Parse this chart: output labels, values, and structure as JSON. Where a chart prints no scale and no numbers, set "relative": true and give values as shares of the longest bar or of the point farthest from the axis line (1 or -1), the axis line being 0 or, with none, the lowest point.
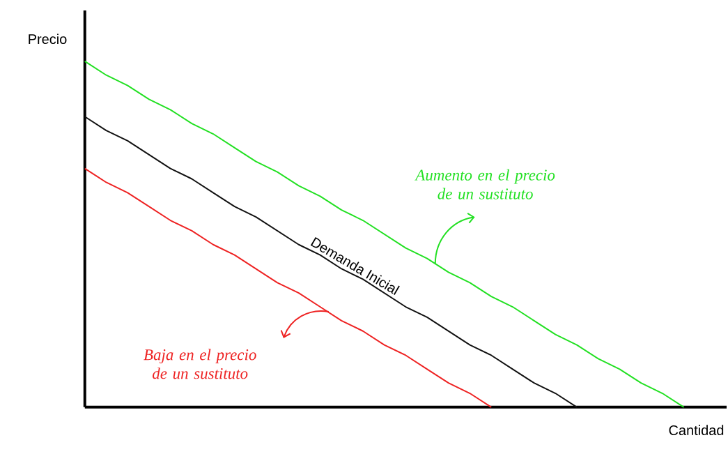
{
  "chart_data": {
    "type": "line",
    "relative": true,
    "xlabel": "Cantidad",
    "ylabel": "Precio",
    "categories": [
      null,
      null,
      null,
      null,
      null,
      null,
      null,
      null,
      null,
      null,
      null,
      null,
      null,
      null,
      null,
      null,
      null,
      null,
      null,
      null,
      null,
      null,
      null,
      null,
      null,
      null,
      null,
      null,
      null
    ],
    "series": [
      {
        "name": "Aumento en el precio de un sustituto",
        "color": "#22e022",
        "values": [
          1,
          0.96,
          0.93,
          0.89,
          0.86,
          0.82,
          0.79,
          0.75,
          0.71,
          0.68,
          0.64,
          0.61,
          0.57,
          0.54,
          0.5,
          0.46,
          0.43,
          0.39,
          0.36,
          0.32,
          0.29,
          0.25,
          0.21,
          0.18,
          0.14,
          0.11,
          0.07,
          0.04,
          0
        ]
      },
      {
        "name": "Demanda Inicial",
        "color": "#111111",
        "values": [
          0.84,
          0.8,
          0.77,
          0.73,
          0.69,
          0.66,
          0.62,
          0.58,
          0.55,
          0.51,
          0.47,
          0.44,
          0.4,
          0.37,
          0.33,
          0.29,
          0.26,
          0.22,
          0.18,
          0.15,
          0.11,
          0.07,
          0.04,
          0,
          null,
          null,
          null,
          null,
          null
        ]
      },
      {
        "name": "Baja en el precio de un sustituto",
        "color": "#ee2222",
        "values": [
          0.69,
          0.65,
          0.62,
          0.58,
          0.54,
          0.51,
          0.47,
          0.44,
          0.4,
          0.36,
          0.33,
          0.29,
          0.25,
          0.22,
          0.18,
          0.15,
          0.11,
          0.07,
          0.04,
          0,
          null,
          null,
          null,
          null,
          null,
          null,
          null,
          null,
          null
        ]
      }
    ]
  }
}
